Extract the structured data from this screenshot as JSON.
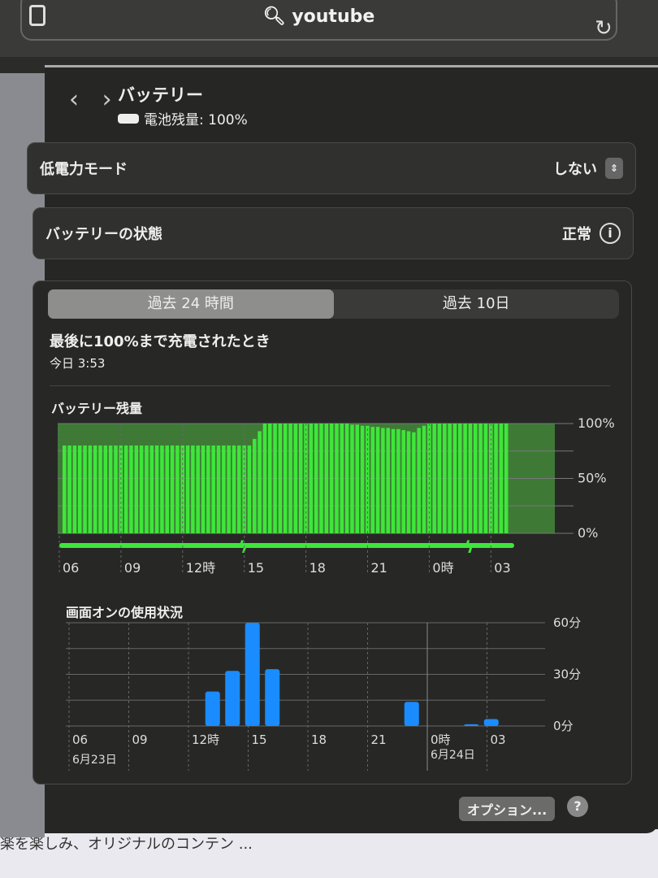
{
  "browser": {
    "search_text": "youtube",
    "search_icon": "search-icon",
    "reload_icon": "reload-icon",
    "sidebar_icon": "sidebar-icon"
  },
  "background_text": "楽を楽しみ、オリジナルのコンテン ...",
  "header": {
    "title": "バッテリー",
    "subtitle": "電池残量: 100%"
  },
  "low_power": {
    "label": "低電力モード",
    "value": "しない"
  },
  "health": {
    "label": "バッテリーの状態",
    "value": "正常"
  },
  "tabs": [
    {
      "label": "過去 24 時間",
      "selected": true
    },
    {
      "label": "過去 10日",
      "selected": false
    }
  ],
  "last_charge": {
    "label": "最後に100%まで充電されたとき",
    "time": "今日 3:53"
  },
  "footer": {
    "options": "オプション...",
    "help": "?"
  },
  "colors": {
    "battery": "#3ee63a",
    "usage": "#1a8cff"
  },
  "chart_data": [
    {
      "type": "bar",
      "title": "バッテリー残量",
      "x_ticks": [
        "06",
        "09",
        "12時",
        "15",
        "18",
        "21",
        "0時",
        "03"
      ],
      "y_ticks": [
        "100%",
        "50%",
        "0%"
      ],
      "ylim": [
        0,
        100
      ],
      "values": [
        80,
        80,
        80,
        80,
        80,
        80,
        80,
        80,
        80,
        80,
        80,
        80,
        80,
        80,
        80,
        80,
        80,
        80,
        80,
        80,
        80,
        80,
        80,
        80,
        80,
        80,
        80,
        80,
        80,
        80,
        80,
        80,
        80,
        80,
        80,
        80,
        80,
        86,
        93,
        100,
        100,
        100,
        100,
        100,
        100,
        100,
        100,
        100,
        100,
        100,
        100,
        100,
        100,
        100,
        100,
        100,
        99,
        99,
        98,
        98,
        97,
        97,
        96,
        96,
        95,
        95,
        94,
        93,
        92,
        96,
        98,
        100,
        100,
        100,
        100,
        100,
        100,
        100,
        100,
        100,
        100,
        100,
        100,
        100,
        100,
        100,
        100
      ],
      "charging_markers": [
        "14:45",
        "01:45"
      ]
    },
    {
      "type": "bar",
      "title": "画面オンの使用状況",
      "x_ticks": [
        "06",
        "09",
        "12時",
        "15",
        "18",
        "21",
        "0時",
        "03"
      ],
      "date_labels": [
        "6月23日",
        "6月24日"
      ],
      "y_ticks": [
        "60分",
        "30分",
        "0分"
      ],
      "ylim": [
        0,
        60
      ],
      "categories": [
        "13",
        "14",
        "15",
        "16",
        "23",
        "02",
        "03"
      ],
      "values": [
        20,
        32,
        60,
        33,
        14,
        1,
        4
      ]
    }
  ]
}
